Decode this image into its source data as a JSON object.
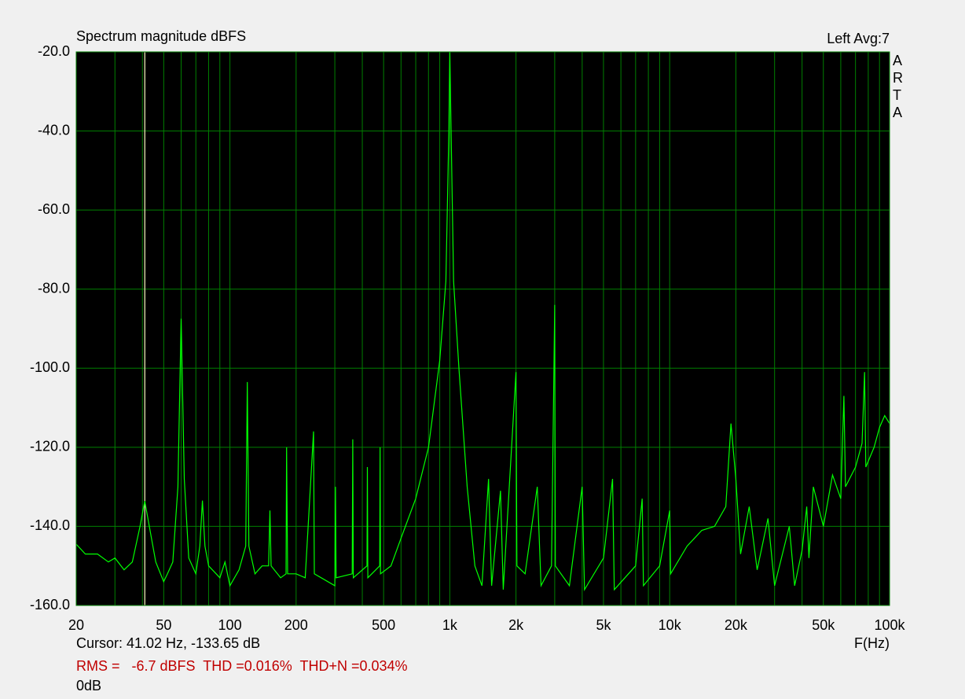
{
  "chart_data": {
    "type": "line",
    "title": "Spectrum magnitude dBFS",
    "channel_label": "Left  Avg:7",
    "side_label": "ARTA",
    "xlabel": "F(Hz)",
    "cursor_text": "Cursor: 41.02 Hz, -133.65 dB",
    "measurement_text": "RMS =   -6.7 dBFS  THD =0.016%  THD+N =0.034%",
    "reference_text": "0dB",
    "cursor": 41.02,
    "xscale": "log",
    "grid": true,
    "xlim": [
      20,
      100000
    ],
    "ylim": [
      -160,
      -20
    ],
    "xticks": [
      20,
      50,
      100,
      200,
      500,
      {
        "value": 1000,
        "label": "1k"
      },
      {
        "value": 2000,
        "label": "2k"
      },
      {
        "value": 5000,
        "label": "5k"
      },
      {
        "value": 10000,
        "label": "10k"
      },
      {
        "value": 20000,
        "label": "20k"
      },
      {
        "value": 50000,
        "label": "50k"
      },
      {
        "value": 100000,
        "label": "100k"
      }
    ],
    "x_minor_grid": [
      30,
      40,
      60,
      70,
      80,
      90,
      300,
      400,
      600,
      700,
      800,
      900,
      3000,
      4000,
      6000,
      7000,
      8000,
      9000,
      30000,
      40000,
      60000,
      70000,
      80000,
      90000
    ],
    "yticks": [
      {
        "value": -20,
        "label": "-20.0"
      },
      {
        "value": -40,
        "label": "-40.0"
      },
      {
        "value": -60,
        "label": "-60.0"
      },
      {
        "value": -80,
        "label": "-80.0"
      },
      {
        "value": -100,
        "label": "-100.0"
      },
      {
        "value": -120,
        "label": "-120.0"
      },
      {
        "value": -140,
        "label": "-140.0"
      },
      {
        "value": -160,
        "label": "-160.0"
      }
    ],
    "series": [
      {
        "color": "#00ff00",
        "x": [
          20,
          22,
          25,
          28,
          30,
          33,
          36,
          39,
          41,
          43,
          46,
          50,
          52,
          55,
          58,
          60,
          62,
          65,
          70,
          73,
          75,
          77,
          80,
          90,
          95,
          100,
          110,
          118,
          120,
          122,
          130,
          140,
          150,
          152,
          154,
          170,
          180,
          181,
          183,
          200,
          220,
          240,
          242,
          260,
          300,
          302,
          304,
          360,
          362,
          364,
          420,
          422,
          424,
          480,
          482,
          484,
          540,
          600,
          700,
          800,
          900,
          960,
          990,
          1000,
          1010,
          1040,
          1100,
          1200,
          1300,
          1400,
          1500,
          1550,
          1700,
          1750,
          2000,
          2020,
          2200,
          2500,
          2600,
          2900,
          3000,
          3020,
          3500,
          4000,
          4100,
          5000,
          5500,
          5600,
          7000,
          7500,
          7600,
          9000,
          10000,
          10100,
          12000,
          14000,
          16000,
          18000,
          19000,
          20000,
          21000,
          23000,
          25000,
          28000,
          30000,
          35000,
          37000,
          40000,
          42000,
          43000,
          45000,
          50000,
          55000,
          60000,
          62000,
          63000,
          70000,
          75000,
          77000,
          78000,
          85000,
          90000,
          95000,
          100000
        ],
        "values": [
          -144.5,
          -147,
          -147,
          -149,
          -148,
          -151,
          -149,
          -140,
          -133.6,
          -140,
          -149,
          -154,
          -152,
          -149,
          -130,
          -87.5,
          -128,
          -148,
          -152,
          -145,
          -133.5,
          -145,
          -150,
          -153,
          -149,
          -155,
          -151,
          -145,
          -103.5,
          -145,
          -152,
          -150,
          -150,
          -136,
          -150,
          -153,
          -152,
          -120,
          -152,
          -152,
          -153,
          -116,
          -152,
          -153,
          -155,
          -130,
          -153,
          -152,
          -118,
          -153,
          -150,
          -125,
          -153,
          -150,
          -120,
          -152,
          -150,
          -143,
          -133,
          -120,
          -98,
          -78,
          -40,
          -20,
          -35,
          -78,
          -100,
          -130,
          -150,
          -155,
          -128,
          -155,
          -131,
          -156,
          -101,
          -150,
          -152,
          -130,
          -155,
          -150,
          -84,
          -150,
          -155,
          -130,
          -156,
          -148,
          -128,
          -156,
          -150,
          -133,
          -155,
          -150,
          -136,
          -152,
          -145,
          -141,
          -140,
          -135,
          -114,
          -128,
          -147,
          -135,
          -151,
          -138,
          -155,
          -140,
          -155,
          -146,
          -135,
          -148,
          -130,
          -140,
          -127,
          -133,
          -107,
          -130,
          -125,
          -119,
          -101,
          -125,
          -120,
          -115,
          -112,
          -114
        ]
      }
    ]
  }
}
